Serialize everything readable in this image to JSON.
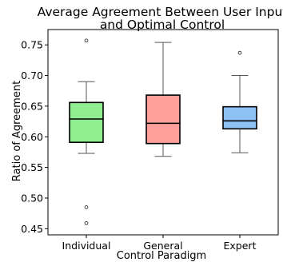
{
  "chart_data": {
    "type": "box",
    "title": [
      "Average Agreement Between User Input",
      "and Optimal Control"
    ],
    "xlabel": "Control Paradigm",
    "ylabel": "Ratio of Agreement",
    "ylim": [
      0.44,
      0.775
    ],
    "yticks": [
      0.45,
      0.5,
      0.55,
      0.6,
      0.65,
      0.7,
      0.75
    ],
    "ytick_labels": [
      "0.45",
      "0.50",
      "0.55",
      "0.60",
      "0.65",
      "0.70",
      "0.75"
    ],
    "categories": [
      "Individual",
      "General",
      "Expert"
    ],
    "boxes": [
      {
        "category": "Individual",
        "whisker_low": 0.573,
        "q1": 0.591,
        "median": 0.629,
        "q3": 0.656,
        "whisker_high": 0.69,
        "outliers": [
          0.757,
          0.485,
          0.459
        ],
        "color": "#90ee90"
      },
      {
        "category": "General",
        "whisker_low": 0.568,
        "q1": 0.589,
        "median": 0.622,
        "q3": 0.668,
        "whisker_high": 0.754,
        "outliers": [],
        "color": "#ff9f9b"
      },
      {
        "category": "Expert",
        "whisker_low": 0.574,
        "q1": 0.613,
        "median": 0.626,
        "q3": 0.649,
        "whisker_high": 0.7,
        "outliers": [
          0.737
        ],
        "color": "#8ec2f5"
      }
    ],
    "grid": false,
    "legend": "none"
  }
}
